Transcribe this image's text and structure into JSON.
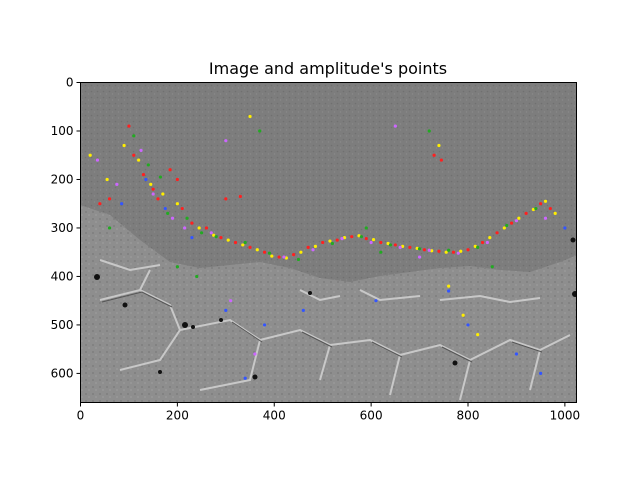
{
  "chart_data": {
    "type": "scatter",
    "title": "Image and amplitude's points",
    "xlabel": "",
    "ylabel": "",
    "xlim": [
      0,
      1024
    ],
    "ylim": [
      660,
      0
    ],
    "x_ticks": [
      0,
      200,
      400,
      600,
      800,
      1000
    ],
    "y_ticks": [
      0,
      100,
      200,
      300,
      400,
      500,
      600
    ],
    "grid": false,
    "legend": "none",
    "background": "grayscale micrograph image",
    "point_colors": {
      "red": "#ff2020",
      "yellow": "#ffee00",
      "green": "#22aa22",
      "violet": "#cc66ff",
      "blue": "#3355ff"
    },
    "series": [
      {
        "color_key": "red",
        "points": [
          [
            40,
            250
          ],
          [
            60,
            240
          ],
          [
            100,
            90
          ],
          [
            110,
            150
          ],
          [
            130,
            190
          ],
          [
            150,
            220
          ],
          [
            160,
            240
          ],
          [
            185,
            180
          ],
          [
            200,
            200
          ],
          [
            230,
            290
          ],
          [
            260,
            300
          ],
          [
            290,
            320
          ],
          [
            320,
            330
          ],
          [
            350,
            340
          ],
          [
            380,
            350
          ],
          [
            410,
            360
          ],
          [
            440,
            355
          ],
          [
            470,
            340
          ],
          [
            500,
            330
          ],
          [
            530,
            325
          ],
          [
            560,
            318
          ],
          [
            590,
            322
          ],
          [
            620,
            330
          ],
          [
            650,
            335
          ],
          [
            680,
            340
          ],
          [
            710,
            345
          ],
          [
            740,
            348
          ],
          [
            770,
            350
          ],
          [
            800,
            345
          ],
          [
            830,
            330
          ],
          [
            860,
            310
          ],
          [
            890,
            290
          ],
          [
            920,
            270
          ],
          [
            950,
            250
          ],
          [
            970,
            260
          ],
          [
            730,
            150
          ],
          [
            745,
            160
          ],
          [
            210,
            260
          ],
          [
            300,
            240
          ],
          [
            330,
            235
          ]
        ]
      },
      {
        "color_key": "yellow",
        "points": [
          [
            20,
            150
          ],
          [
            55,
            200
          ],
          [
            90,
            130
          ],
          [
            120,
            160
          ],
          [
            145,
            210
          ],
          [
            170,
            230
          ],
          [
            200,
            250
          ],
          [
            245,
            300
          ],
          [
            275,
            315
          ],
          [
            305,
            325
          ],
          [
            335,
            335
          ],
          [
            365,
            345
          ],
          [
            395,
            358
          ],
          [
            425,
            362
          ],
          [
            455,
            350
          ],
          [
            485,
            338
          ],
          [
            515,
            327
          ],
          [
            545,
            320
          ],
          [
            575,
            316
          ],
          [
            605,
            324
          ],
          [
            635,
            332
          ],
          [
            665,
            338
          ],
          [
            695,
            342
          ],
          [
            725,
            347
          ],
          [
            755,
            350
          ],
          [
            785,
            348
          ],
          [
            815,
            338
          ],
          [
            845,
            320
          ],
          [
            875,
            300
          ],
          [
            905,
            280
          ],
          [
            935,
            262
          ],
          [
            960,
            245
          ],
          [
            980,
            270
          ],
          [
            760,
            420
          ],
          [
            790,
            480
          ],
          [
            820,
            520
          ],
          [
            350,
            70
          ],
          [
            740,
            130
          ]
        ]
      },
      {
        "color_key": "green",
        "points": [
          [
            60,
            300
          ],
          [
            110,
            110
          ],
          [
            140,
            170
          ],
          [
            165,
            195
          ],
          [
            180,
            270
          ],
          [
            220,
            280
          ],
          [
            250,
            310
          ],
          [
            280,
            318
          ],
          [
            340,
            330
          ],
          [
            390,
            352
          ],
          [
            450,
            365
          ],
          [
            520,
            332
          ],
          [
            580,
            318
          ],
          [
            640,
            335
          ],
          [
            700,
            343
          ],
          [
            760,
            346
          ],
          [
            820,
            340
          ],
          [
            880,
            295
          ],
          [
            940,
            260
          ],
          [
            590,
            300
          ],
          [
            620,
            350
          ],
          [
            200,
            380
          ],
          [
            240,
            400
          ],
          [
            370,
            100
          ],
          [
            720,
            100
          ],
          [
            850,
            380
          ]
        ]
      },
      {
        "color_key": "violet",
        "points": [
          [
            35,
            160
          ],
          [
            75,
            210
          ],
          [
            125,
            140
          ],
          [
            150,
            230
          ],
          [
            190,
            280
          ],
          [
            215,
            300
          ],
          [
            270,
            310
          ],
          [
            310,
            450
          ],
          [
            360,
            560
          ],
          [
            420,
            360
          ],
          [
            480,
            345
          ],
          [
            540,
            322
          ],
          [
            600,
            330
          ],
          [
            660,
            340
          ],
          [
            720,
            346
          ],
          [
            780,
            352
          ],
          [
            840,
            330
          ],
          [
            900,
            285
          ],
          [
            960,
            280
          ],
          [
            650,
            90
          ],
          [
            700,
            360
          ],
          [
            300,
            120
          ]
        ]
      },
      {
        "color_key": "blue",
        "points": [
          [
            85,
            250
          ],
          [
            135,
            200
          ],
          [
            175,
            260
          ],
          [
            230,
            320
          ],
          [
            300,
            470
          ],
          [
            380,
            500
          ],
          [
            460,
            470
          ],
          [
            610,
            450
          ],
          [
            760,
            430
          ],
          [
            800,
            500
          ],
          [
            900,
            560
          ],
          [
            950,
            600
          ],
          [
            1000,
            300
          ],
          [
            340,
            610
          ]
        ]
      }
    ]
  }
}
